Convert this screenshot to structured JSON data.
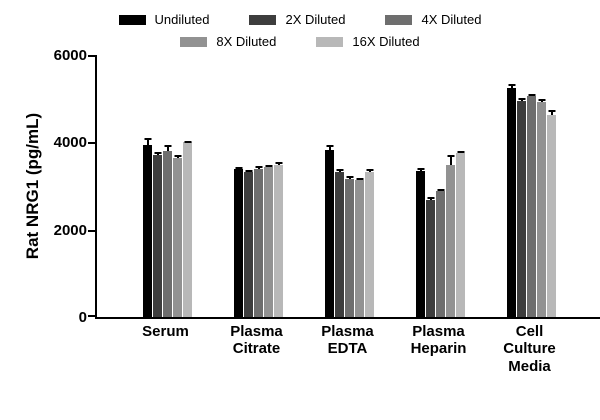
{
  "figure": {
    "background": "#ffffff"
  },
  "legend": {
    "rows": [
      [
        0,
        1,
        2
      ],
      [
        3,
        4
      ]
    ]
  },
  "chart_data": {
    "type": "bar",
    "title": "",
    "xlabel": "",
    "ylabel": "Rat NRG1 (pg/mL)",
    "ylim": [
      0,
      6000
    ],
    "yticks": [
      0,
      2000,
      4000,
      6000
    ],
    "grid": false,
    "legend_position": "top",
    "categories": [
      "Serum",
      "Plasma\nCitrate",
      "Plasma\nEDTA",
      "Plasma\nHeparin",
      "Cell\nCulture\nMedia"
    ],
    "series": [
      {
        "name": "Undiluted",
        "color": "#000000",
        "values": [
          3950,
          3380,
          3820,
          3350,
          5250
        ],
        "errors": [
          150,
          60,
          110,
          60,
          90
        ]
      },
      {
        "name": "2X Diluted",
        "color": "#3d3d3d",
        "values": [
          3700,
          3310,
          3320,
          2680,
          4950
        ],
        "errors": [
          70,
          60,
          70,
          70,
          60
        ]
      },
      {
        "name": "4X Diluted",
        "color": "#6e6e6e",
        "values": [
          3800,
          3400,
          3170,
          2880,
          5050
        ],
        "errors": [
          130,
          60,
          60,
          60,
          50
        ]
      },
      {
        "name": "8X Diluted",
        "color": "#929292",
        "values": [
          3640,
          3430,
          3140,
          3480,
          4930
        ],
        "errors": [
          60,
          60,
          50,
          220,
          60
        ]
      },
      {
        "name": "16X Diluted",
        "color": "#b8b8b8",
        "values": [
          4000,
          3470,
          3310,
          3750,
          4620
        ],
        "errors": [
          40,
          90,
          70,
          60,
          130
        ]
      }
    ]
  }
}
